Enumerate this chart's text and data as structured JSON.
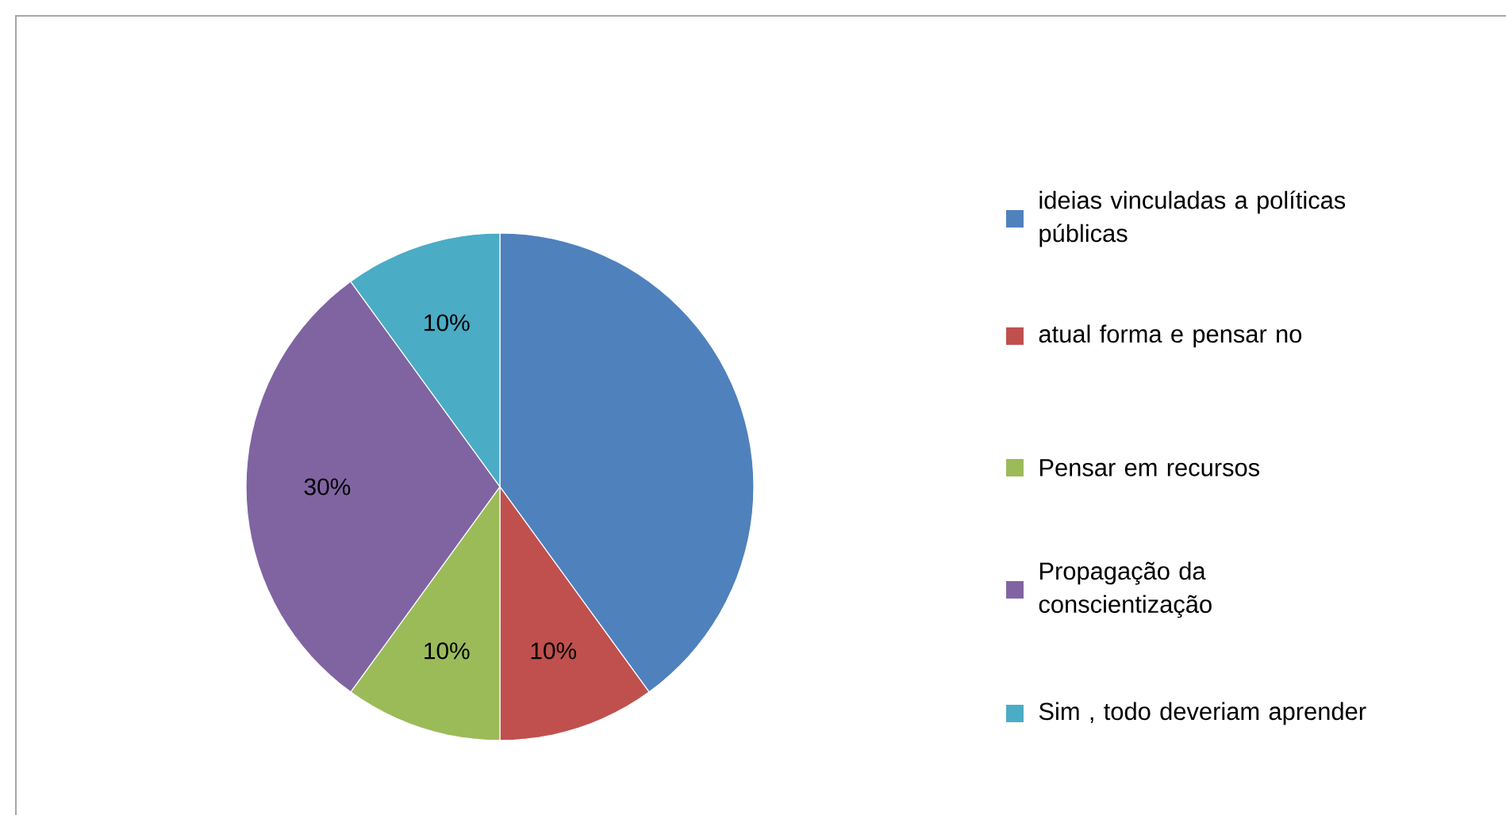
{
  "chart_data": {
    "type": "pie",
    "categories": [
      "ideias vinculadas a políticas públicas",
      "atual forma e pensar no",
      "Pensar em recursos",
      "Propagação da conscientização",
      "Sim , todo deveriam aprender"
    ],
    "values": [
      40,
      10,
      10,
      30,
      10
    ],
    "value_labels": [
      null,
      "10%",
      "10%",
      "30%",
      "10%"
    ],
    "colors": [
      "#4f81bd",
      "#c0504d",
      "#9bbb59",
      "#8064a2",
      "#4bacc6"
    ],
    "legend": "right"
  }
}
